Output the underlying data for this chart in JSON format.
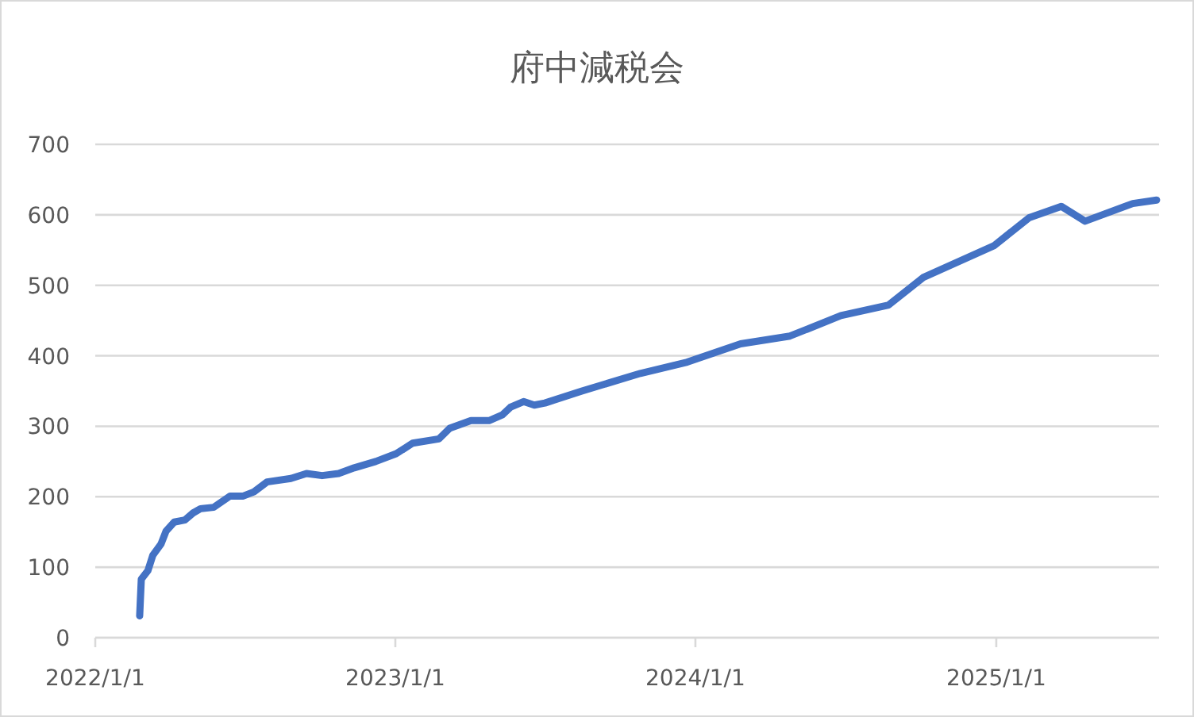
{
  "chart_data": {
    "type": "line",
    "title": "府中減税会",
    "x": [
      "2022-02-24",
      "2022-02-26",
      "2022-03-06",
      "2022-03-12",
      "2022-03-22",
      "2022-03-28",
      "2022-04-07",
      "2022-04-20",
      "2022-04-30",
      "2022-05-09",
      "2022-05-25",
      "2022-06-14",
      "2022-06-30",
      "2022-07-13",
      "2022-07-29",
      "2022-08-27",
      "2022-09-15",
      "2022-10-04",
      "2022-10-24",
      "2022-11-12",
      "2022-12-08",
      "2023-01-02",
      "2023-01-22",
      "2023-02-23",
      "2023-03-08",
      "2023-04-03",
      "2023-04-25",
      "2023-05-11",
      "2023-05-21",
      "2023-06-06",
      "2023-06-19",
      "2023-07-02",
      "2023-08-16",
      "2023-10-26",
      "2023-12-22",
      "2024-02-25",
      "2024-04-25",
      "2024-06-26",
      "2024-08-23",
      "2024-10-04",
      "2024-12-29",
      "2025-02-10",
      "2025-03-21",
      "2025-04-19",
      "2025-06-16",
      "2025-07-15"
    ],
    "series": [
      {
        "color": "#4472c4",
        "values": [
          31,
          83,
          95,
          117,
          133,
          151,
          164,
          167,
          177,
          183,
          185,
          201,
          201,
          207,
          221,
          226,
          233,
          230,
          233,
          241,
          250,
          261,
          276,
          282,
          297,
          308,
          308,
          316,
          327,
          335,
          330,
          333,
          350,
          375,
          391,
          417,
          428,
          457,
          472,
          511,
          556,
          596,
          612,
          591,
          616,
          621
        ]
      }
    ],
    "xlim": [
      "2022-01-01",
      "2025-07-18"
    ],
    "xticks": [
      {
        "value": "2022-01-01",
        "label": "2022/1/1"
      },
      {
        "value": "2023-01-01",
        "label": "2023/1/1"
      },
      {
        "value": "2024-01-01",
        "label": "2024/1/1"
      },
      {
        "value": "2025-01-01",
        "label": "2025/1/1"
      }
    ],
    "ylim": [
      0,
      700
    ],
    "yticks": [
      0,
      100,
      200,
      300,
      400,
      500,
      600,
      700
    ],
    "grid": "y",
    "marker": "none",
    "line_style": "solid"
  }
}
